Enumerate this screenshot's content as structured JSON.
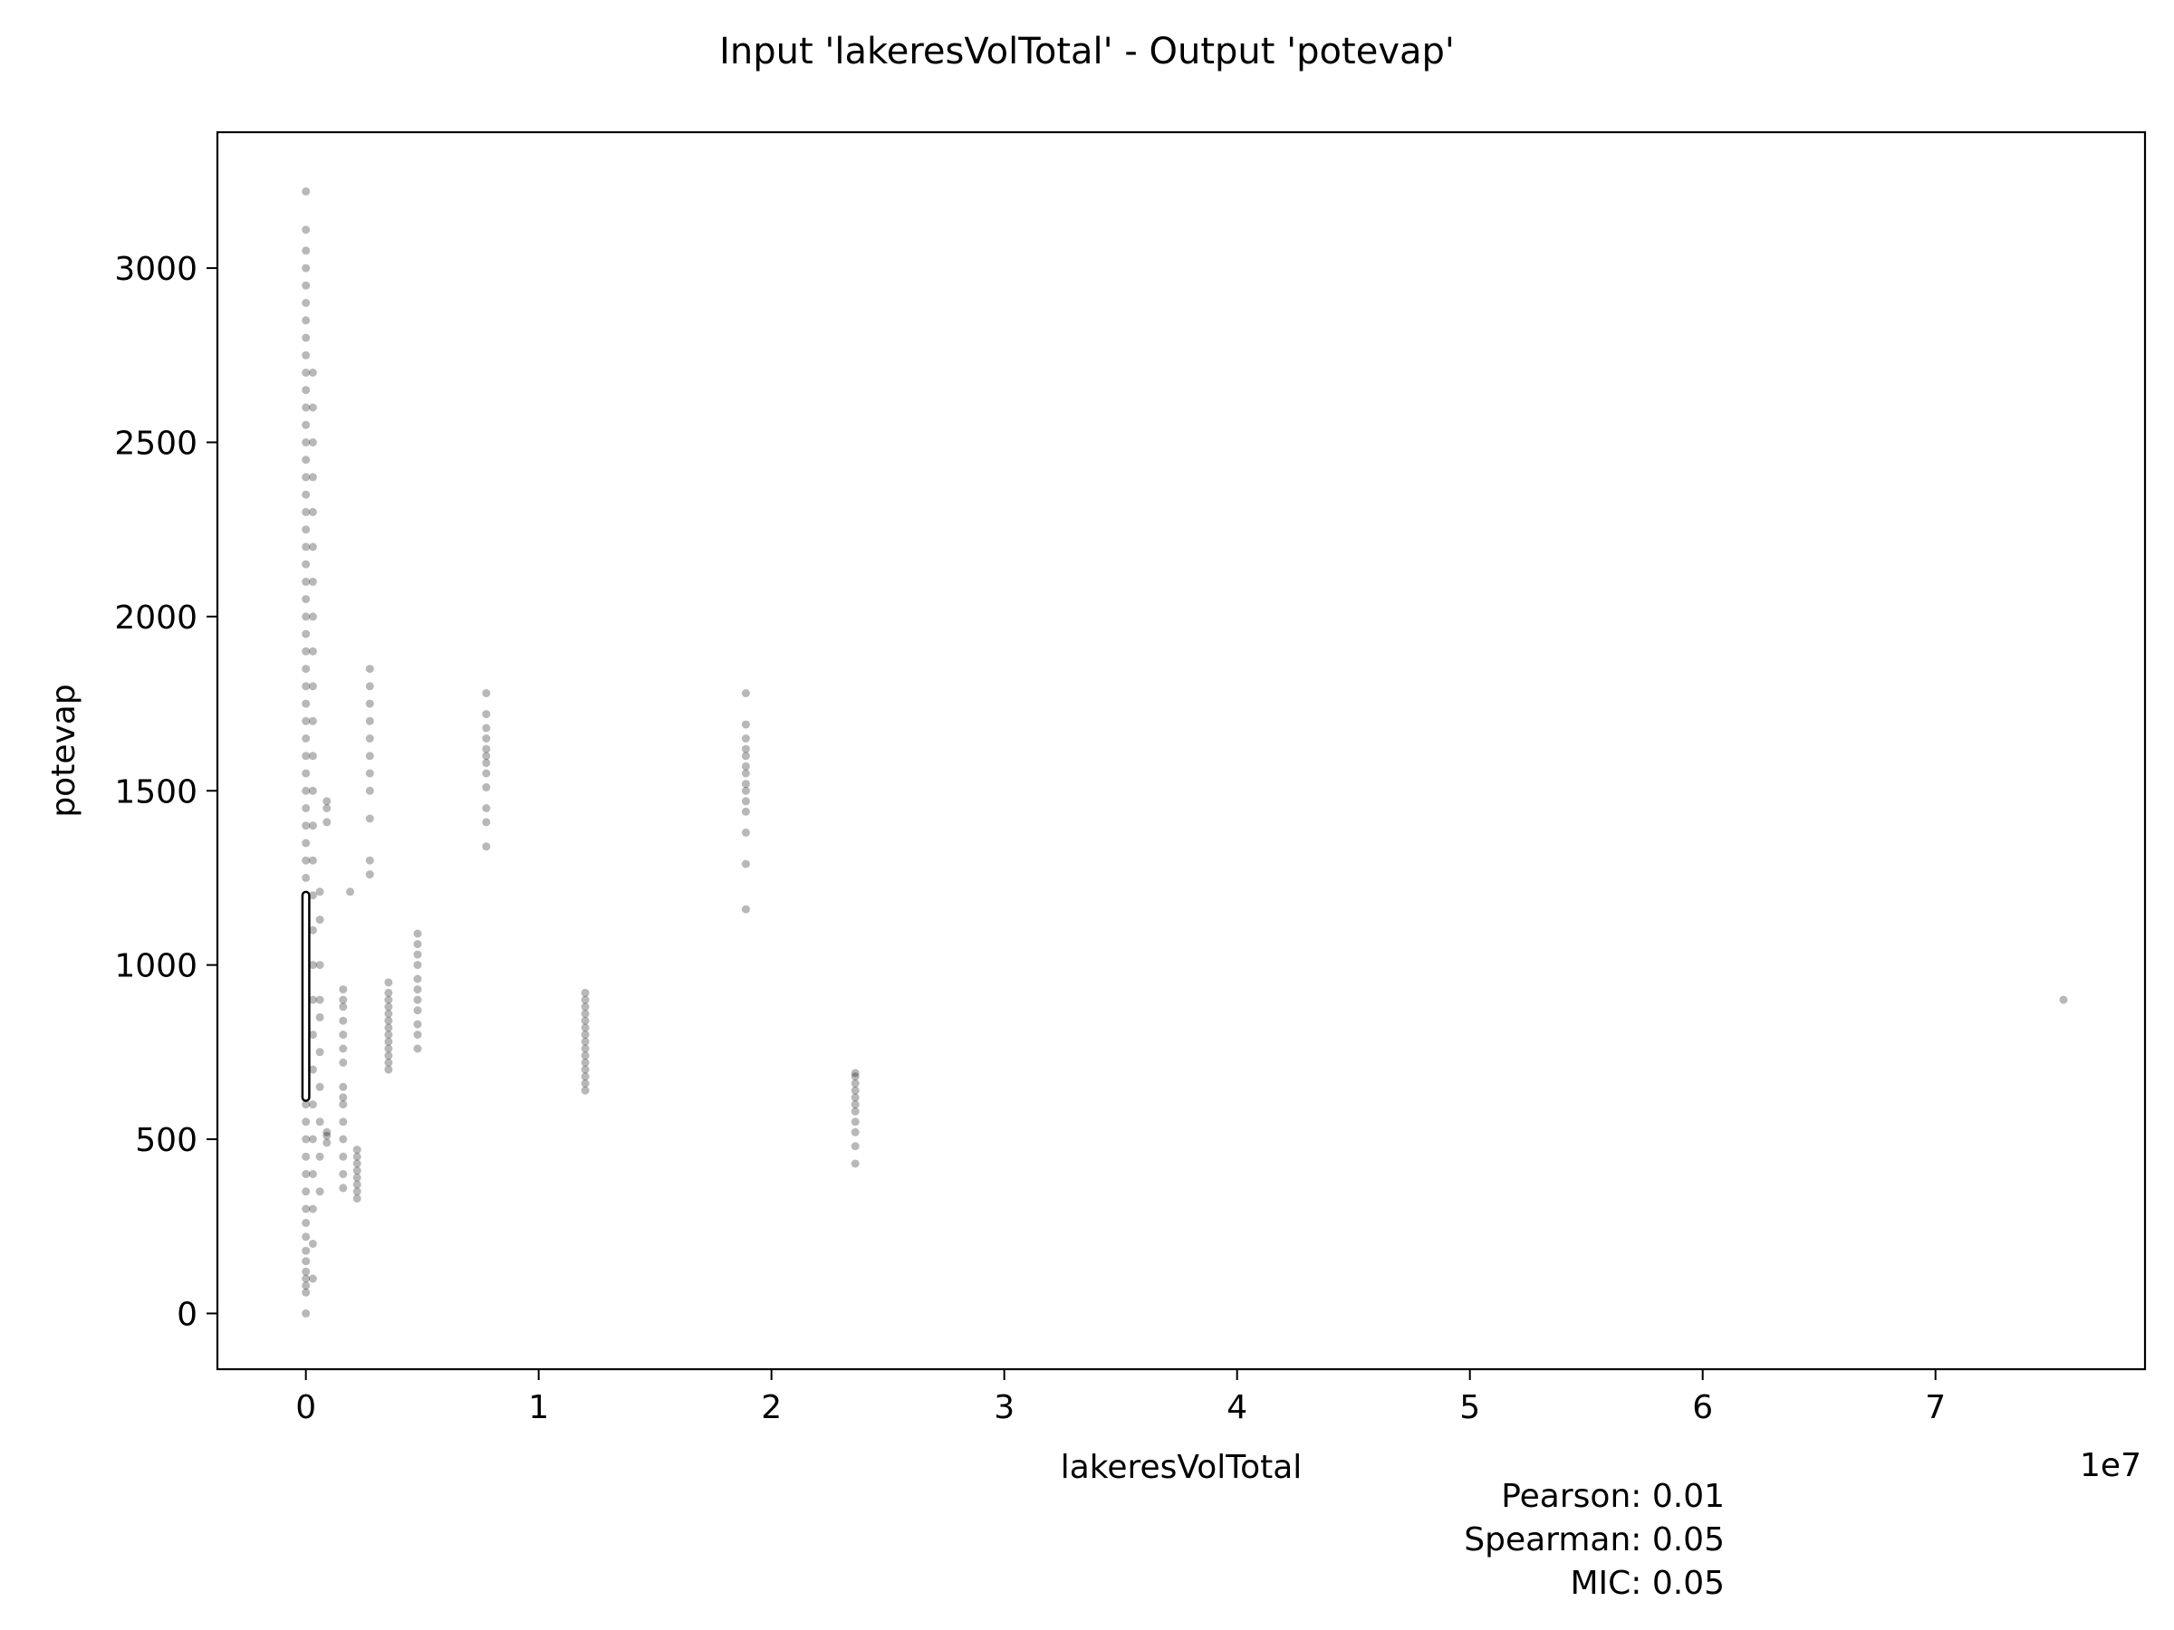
{
  "chart_data": {
    "type": "scatter",
    "title": "Input 'lakeresVolTotal' - Output 'potevap'",
    "xlabel": "lakeresVolTotal",
    "ylabel": "potevap",
    "x_offset_label": "1e7",
    "x_scale_factor": 10000000,
    "xlim": [
      -3800000,
      79000000
    ],
    "ylim": [
      -160,
      3390
    ],
    "x_ticks": [
      0,
      10000000,
      20000000,
      30000000,
      40000000,
      50000000,
      60000000,
      70000000
    ],
    "x_tick_labels": [
      "0",
      "1",
      "2",
      "3",
      "4",
      "5",
      "6",
      "7"
    ],
    "y_ticks": [
      0,
      500,
      1000,
      1500,
      2000,
      2500,
      3000
    ],
    "y_tick_labels": [
      "0",
      "500",
      "1000",
      "1500",
      "2000",
      "2500",
      "3000"
    ],
    "grid": false,
    "marker_color": "#000000",
    "marker_alpha": 0.28,
    "stats": [
      "Pearson: 0.01",
      "Spearman: 0.05",
      "MIC: 0.05"
    ],
    "clusters": [
      {
        "x": 0,
        "y": [
          0,
          60,
          80,
          100,
          120,
          150,
          180,
          220,
          260,
          300,
          350,
          400,
          450,
          500,
          550,
          600,
          650,
          700,
          750,
          800,
          850,
          900,
          950,
          1000,
          1050,
          1100,
          1150,
          1200,
          1250,
          1300,
          1350,
          1400,
          1450,
          1500,
          1550,
          1600,
          1650,
          1700,
          1750,
          1800,
          1850,
          1900,
          1950,
          2000,
          2050,
          2100,
          2150,
          2200,
          2250,
          2300,
          2350,
          2400,
          2450,
          2500,
          2550,
          2600,
          2650,
          2700,
          2750,
          2800,
          2850,
          2900,
          2950,
          3000,
          3050,
          3110,
          3220
        ]
      },
      {
        "x": 300000,
        "y": [
          100,
          200,
          300,
          400,
          500,
          600,
          700,
          800,
          900,
          1000,
          1100,
          1200,
          1300,
          1400,
          1500,
          1600,
          1700,
          1800,
          1900,
          2000,
          2100,
          2200,
          2300,
          2400,
          2500,
          2600,
          2700
        ]
      },
      {
        "x": 600000,
        "y": [
          350,
          450,
          550,
          650,
          750,
          850,
          900,
          1000,
          1130,
          1210
        ]
      },
      {
        "x": 900000,
        "y": [
          490,
          510,
          520,
          1410,
          1450,
          1470
        ]
      },
      {
        "x": 1600000,
        "y": [
          360,
          400,
          450,
          500,
          550,
          600,
          620,
          650,
          720,
          760,
          800,
          840,
          880,
          900,
          930
        ]
      },
      {
        "x": 1900000,
        "y": [
          1210
        ]
      },
      {
        "x": 2200000,
        "y": [
          330,
          350,
          370,
          390,
          410,
          430,
          450,
          470
        ]
      },
      {
        "x": 2750000,
        "y": [
          1260,
          1300,
          1420,
          1500,
          1550,
          1600,
          1650,
          1700,
          1750,
          1800,
          1850
        ]
      },
      {
        "x": 3550000,
        "y": [
          700,
          720,
          740,
          760,
          780,
          800,
          820,
          840,
          860,
          880,
          900,
          920,
          950
        ]
      },
      {
        "x": 4800000,
        "y": [
          760,
          800,
          830,
          870,
          900,
          930,
          960,
          1000,
          1030,
          1060,
          1090
        ]
      },
      {
        "x": 7750000,
        "y": [
          1340,
          1410,
          1450,
          1510,
          1550,
          1580,
          1600,
          1620,
          1650,
          1680,
          1720,
          1780
        ]
      },
      {
        "x": 12000000,
        "y": [
          640,
          660,
          680,
          700,
          720,
          740,
          760,
          780,
          800,
          820,
          840,
          860,
          880,
          900,
          920
        ]
      },
      {
        "x": 18900000,
        "y": [
          1160,
          1290,
          1380,
          1440,
          1470,
          1500,
          1520,
          1550,
          1570,
          1600,
          1620,
          1650,
          1690,
          1780
        ]
      },
      {
        "x": 23600000,
        "y": [
          430,
          480,
          520,
          550,
          580,
          600,
          620,
          640,
          660,
          680,
          690
        ]
      },
      {
        "x": 75500000,
        "y": [
          900
        ]
      }
    ],
    "box": {
      "x": 0,
      "whisker_low": 620,
      "whisker_high": 1200
    }
  }
}
